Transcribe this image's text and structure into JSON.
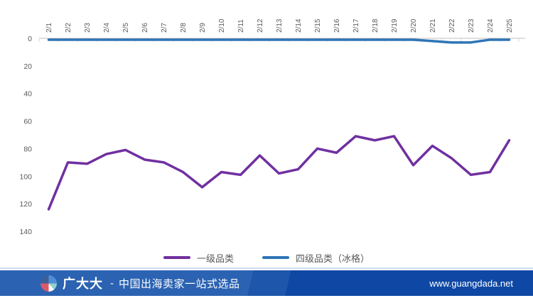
{
  "chart_data": {
    "type": "line",
    "categories": [
      "2/1",
      "2/2",
      "2/3",
      "2/4",
      "2/5",
      "2/6",
      "2/7",
      "2/8",
      "2/9",
      "2/10",
      "2/11",
      "2/12",
      "2/13",
      "2/14",
      "2/15",
      "2/16",
      "2/17",
      "2/18",
      "2/19",
      "2/20",
      "2/21",
      "2/22",
      "2/23",
      "2/24",
      "2/25"
    ],
    "series": [
      {
        "name": "一级品类",
        "color": "#7030a0",
        "values": [
          124,
          90,
          91,
          84,
          81,
          88,
          90,
          97,
          108,
          97,
          99,
          85,
          98,
          95,
          80,
          83,
          71,
          74,
          71,
          92,
          78,
          87,
          99,
          97,
          74
        ]
      },
      {
        "name": "四级品类（冰格）",
        "color": "#2e75b6",
        "values": [
          1,
          1,
          1,
          1,
          1,
          1,
          1,
          1,
          1,
          1,
          1,
          1,
          1,
          1,
          1,
          1,
          1,
          1,
          1,
          1,
          2,
          3,
          3,
          1,
          1
        ]
      }
    ],
    "title": "",
    "xlabel": "",
    "ylabel": "",
    "ylim": [
      0,
      140
    ],
    "y_axis_reversed": true,
    "yticks": [
      0,
      20,
      40,
      60,
      80,
      100,
      120,
      140
    ],
    "grid": false,
    "legend_position": "bottom",
    "x_labels_rotation_deg": 90,
    "axis_color": "#bfbfbf",
    "tick_color": "#d9d9d9",
    "label_color": "#595959"
  },
  "footer": {
    "brand": "广大大",
    "separator": "-",
    "tagline": "中国出海卖家一站式选品",
    "url": "www.guangdada.net"
  }
}
